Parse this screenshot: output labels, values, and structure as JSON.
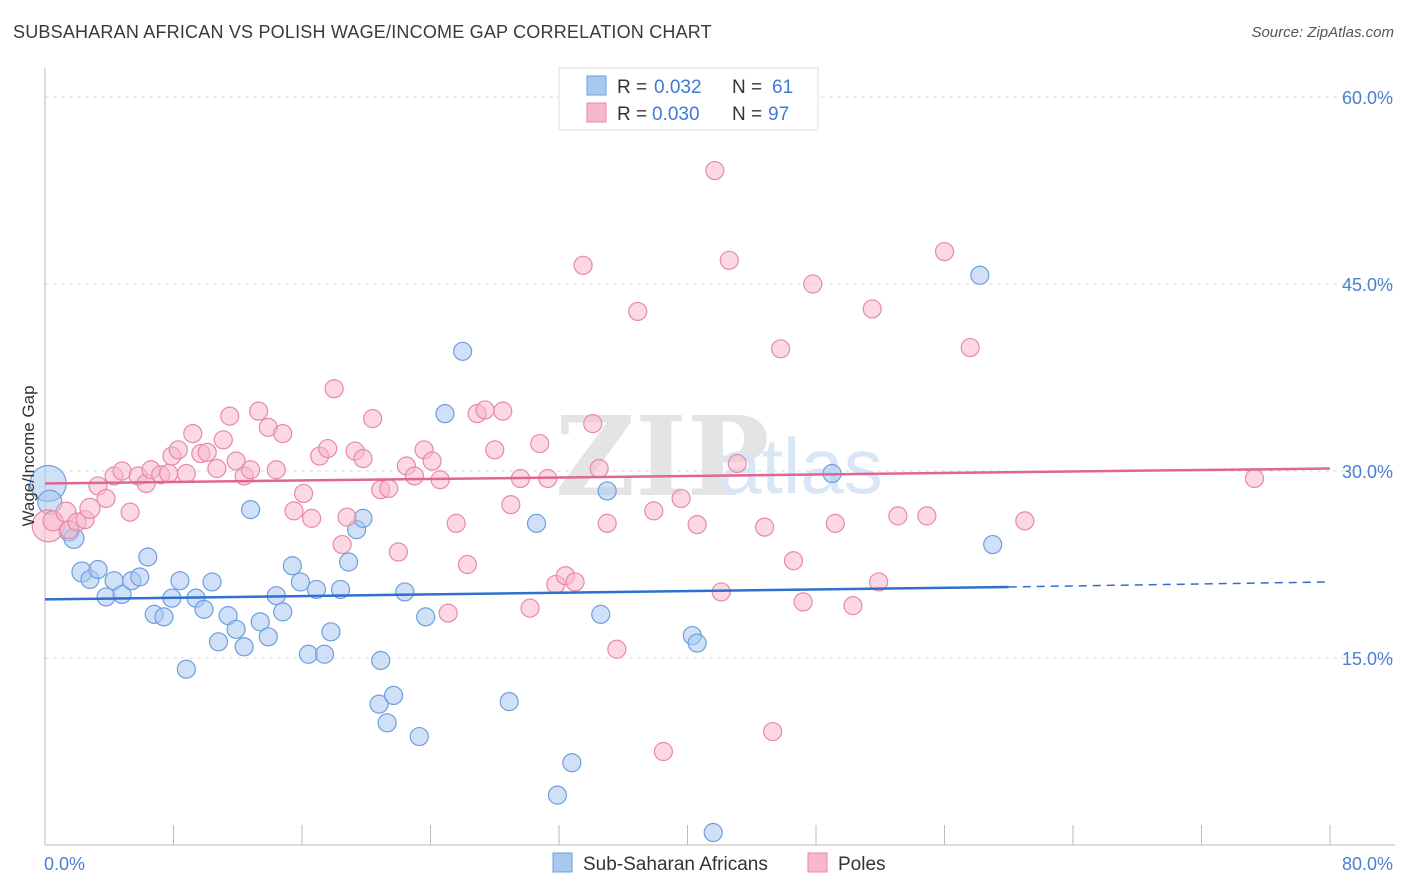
{
  "header": {
    "title": "SUBSAHARAN AFRICAN VS POLISH WAGE/INCOME GAP CORRELATION CHART",
    "source": "Source: ZipAtlas.com"
  },
  "watermark": {
    "zip": "ZIP",
    "atlas": "atlas"
  },
  "legend": {
    "rows": [
      {
        "r_label": "R = ",
        "r_value": "0.032",
        "n_label": "N = ",
        "n_value": "61",
        "color": "#a9c8f0",
        "stroke": "#6d9ee0"
      },
      {
        "r_label": "R = ",
        "r_value": "0.030",
        "n_label": "N = ",
        "n_value": "97",
        "color": "#f7b8cc",
        "stroke": "#e889a8"
      }
    ]
  },
  "bottom_legend": [
    {
      "label": "Sub-Saharan Africans",
      "color": "#a9c8f0",
      "stroke": "#6d9ee0"
    },
    {
      "label": "Poles",
      "color": "#f7b8cc",
      "stroke": "#e889a8"
    }
  ],
  "chart_data": {
    "type": "scatter",
    "title": "SUBSAHARAN AFRICAN VS POLISH WAGE/INCOME GAP CORRELATION CHART",
    "xlabel": "",
    "ylabel": "Wage/Income Gap",
    "xlim": [
      0,
      80
    ],
    "ylim": [
      0,
      60
    ],
    "x_tick_labels": [
      "0.0%",
      "80.0%"
    ],
    "y_tick_labels": [
      "15.0%",
      "30.0%",
      "45.0%",
      "60.0%"
    ],
    "y_ticks": [
      15,
      30,
      45,
      60
    ],
    "grid": true,
    "legend_position": "top-center",
    "series": [
      {
        "name": "Sub-Saharan Africans",
        "color": "#6d9ee0",
        "fill": "#a9c8f0",
        "trend": {
          "x0": 0,
          "y0": 19.7,
          "x1": 60,
          "y1": 20.7,
          "dashed_to_x": 80,
          "dashed_to_y": 21.1
        },
        "points": [
          [
            0.2,
            29.0,
            18
          ],
          [
            0.3,
            27.5,
            12
          ],
          [
            1.5,
            25.2,
            10
          ],
          [
            1.8,
            24.6,
            10
          ],
          [
            2.3,
            21.9,
            10
          ],
          [
            2.8,
            21.3,
            9
          ],
          [
            3.3,
            22.1,
            9
          ],
          [
            3.8,
            19.9,
            9
          ],
          [
            4.3,
            21.2,
            9
          ],
          [
            4.8,
            20.1,
            9
          ],
          [
            5.4,
            21.2,
            9
          ],
          [
            5.9,
            21.5,
            9
          ],
          [
            6.4,
            23.1,
            9
          ],
          [
            6.8,
            18.5,
            9
          ],
          [
            7.4,
            18.3,
            9
          ],
          [
            7.9,
            19.8,
            9
          ],
          [
            8.4,
            21.2,
            9
          ],
          [
            8.8,
            14.1,
            9
          ],
          [
            9.4,
            19.8,
            9
          ],
          [
            9.9,
            18.9,
            9
          ],
          [
            10.4,
            21.1,
            9
          ],
          [
            10.8,
            16.3,
            9
          ],
          [
            11.4,
            18.4,
            9
          ],
          [
            11.9,
            17.3,
            9
          ],
          [
            12.4,
            15.9,
            9
          ],
          [
            12.8,
            26.9,
            9
          ],
          [
            13.4,
            17.9,
            9
          ],
          [
            13.9,
            16.7,
            9
          ],
          [
            14.4,
            20.0,
            9
          ],
          [
            14.8,
            18.7,
            9
          ],
          [
            15.4,
            22.4,
            9
          ],
          [
            15.9,
            21.1,
            9
          ],
          [
            16.4,
            15.3,
            9
          ],
          [
            16.9,
            20.5,
            9
          ],
          [
            17.4,
            15.3,
            9
          ],
          [
            17.8,
            17.1,
            9
          ],
          [
            18.4,
            20.5,
            9
          ],
          [
            18.9,
            22.7,
            9
          ],
          [
            19.4,
            25.3,
            9
          ],
          [
            19.8,
            26.2,
            9
          ],
          [
            20.8,
            11.3,
            9
          ],
          [
            20.9,
            14.8,
            9
          ],
          [
            21.3,
            9.8,
            9
          ],
          [
            21.7,
            12.0,
            9
          ],
          [
            22.4,
            20.3,
            9
          ],
          [
            23.3,
            8.7,
            9
          ],
          [
            23.7,
            18.3,
            9
          ],
          [
            24.9,
            34.6,
            9
          ],
          [
            26.0,
            39.6,
            9
          ],
          [
            28.9,
            11.5,
            9
          ],
          [
            30.6,
            25.8,
            9
          ],
          [
            31.9,
            4.0,
            9
          ],
          [
            32.8,
            6.6,
            9
          ],
          [
            34.6,
            18.5,
            9
          ],
          [
            35.0,
            28.4,
            9
          ],
          [
            40.3,
            16.8,
            9
          ],
          [
            40.6,
            16.2,
            9
          ],
          [
            41.6,
            1.0,
            9
          ],
          [
            49.0,
            29.8,
            9
          ],
          [
            58.2,
            45.7,
            9
          ],
          [
            59.0,
            24.1,
            9
          ]
        ]
      },
      {
        "name": "Poles",
        "color": "#e889a8",
        "fill": "#f7b8cc",
        "trend": {
          "x0": 0,
          "y0": 29.0,
          "x1": 80,
          "y1": 30.2
        },
        "points": [
          [
            0.2,
            25.6,
            16
          ],
          [
            0.5,
            26.0,
            10
          ],
          [
            1.3,
            26.7,
            10
          ],
          [
            1.5,
            25.3,
            9
          ],
          [
            2.0,
            25.9,
            9
          ],
          [
            2.5,
            26.1,
            9
          ],
          [
            2.8,
            27.0,
            10
          ],
          [
            3.3,
            28.8,
            9
          ],
          [
            3.8,
            27.8,
            9
          ],
          [
            4.3,
            29.6,
            9
          ],
          [
            4.8,
            30.0,
            9
          ],
          [
            5.3,
            26.7,
            9
          ],
          [
            5.8,
            29.6,
            9
          ],
          [
            6.3,
            29.0,
            9
          ],
          [
            6.6,
            30.1,
            9
          ],
          [
            7.2,
            29.7,
            9
          ],
          [
            7.7,
            29.8,
            9
          ],
          [
            7.9,
            31.2,
            9
          ],
          [
            8.3,
            31.7,
            9
          ],
          [
            8.8,
            29.8,
            9
          ],
          [
            9.2,
            33.0,
            9
          ],
          [
            9.7,
            31.4,
            9
          ],
          [
            10.1,
            31.5,
            9
          ],
          [
            10.7,
            30.2,
            9
          ],
          [
            11.1,
            32.5,
            9
          ],
          [
            11.5,
            34.4,
            9
          ],
          [
            11.9,
            30.8,
            9
          ],
          [
            12.4,
            29.6,
            9
          ],
          [
            12.8,
            30.1,
            9
          ],
          [
            13.3,
            34.8,
            9
          ],
          [
            13.9,
            33.5,
            9
          ],
          [
            14.4,
            30.1,
            9
          ],
          [
            14.8,
            33.0,
            9
          ],
          [
            15.5,
            26.8,
            9
          ],
          [
            16.1,
            28.2,
            9
          ],
          [
            16.6,
            26.2,
            9
          ],
          [
            17.1,
            31.2,
            9
          ],
          [
            17.6,
            31.8,
            9
          ],
          [
            18.0,
            36.6,
            9
          ],
          [
            18.5,
            24.1,
            9
          ],
          [
            18.8,
            26.3,
            9
          ],
          [
            19.3,
            31.6,
            9
          ],
          [
            19.8,
            31.0,
            9
          ],
          [
            20.4,
            34.2,
            9
          ],
          [
            20.9,
            28.5,
            9
          ],
          [
            21.4,
            28.6,
            9
          ],
          [
            22.0,
            23.5,
            9
          ],
          [
            22.5,
            30.4,
            9
          ],
          [
            23.0,
            29.6,
            9
          ],
          [
            23.6,
            31.7,
            9
          ],
          [
            24.1,
            30.8,
            9
          ],
          [
            24.6,
            29.3,
            9
          ],
          [
            25.1,
            18.6,
            9
          ],
          [
            25.6,
            25.8,
            9
          ],
          [
            26.3,
            22.5,
            9
          ],
          [
            26.9,
            34.6,
            9
          ],
          [
            27.4,
            34.9,
            9
          ],
          [
            28.0,
            31.7,
            9
          ],
          [
            28.5,
            34.8,
            9
          ],
          [
            29.0,
            27.3,
            9
          ],
          [
            29.6,
            29.4,
            9
          ],
          [
            30.2,
            19.0,
            9
          ],
          [
            30.8,
            32.2,
            9
          ],
          [
            31.3,
            29.4,
            9
          ],
          [
            31.8,
            20.9,
            9
          ],
          [
            32.4,
            21.6,
            9
          ],
          [
            33.0,
            21.1,
            9
          ],
          [
            33.5,
            46.5,
            9
          ],
          [
            34.1,
            33.8,
            9
          ],
          [
            34.5,
            30.2,
            9
          ],
          [
            35.0,
            25.8,
            9
          ],
          [
            35.6,
            15.7,
            9
          ],
          [
            36.9,
            42.8,
            9
          ],
          [
            37.9,
            26.8,
            9
          ],
          [
            38.5,
            7.5,
            9
          ],
          [
            39.6,
            27.8,
            9
          ],
          [
            40.6,
            25.7,
            9
          ],
          [
            41.7,
            54.1,
            9
          ],
          [
            42.1,
            20.3,
            9
          ],
          [
            42.6,
            46.9,
            9
          ],
          [
            43.1,
            30.6,
            9
          ],
          [
            44.8,
            25.5,
            9
          ],
          [
            45.3,
            9.1,
            9
          ],
          [
            45.8,
            39.8,
            9
          ],
          [
            46.6,
            22.8,
            9
          ],
          [
            47.2,
            19.5,
            9
          ],
          [
            47.8,
            45.0,
            9
          ],
          [
            49.2,
            25.8,
            9
          ],
          [
            50.3,
            19.2,
            9
          ],
          [
            51.5,
            43.0,
            9
          ],
          [
            51.9,
            21.1,
            9
          ],
          [
            53.1,
            26.4,
            9
          ],
          [
            54.9,
            26.4,
            9
          ],
          [
            56.0,
            47.6,
            9
          ],
          [
            57.6,
            39.9,
            9
          ],
          [
            61.0,
            26.0,
            9
          ],
          [
            75.3,
            29.4,
            9
          ]
        ]
      }
    ]
  }
}
